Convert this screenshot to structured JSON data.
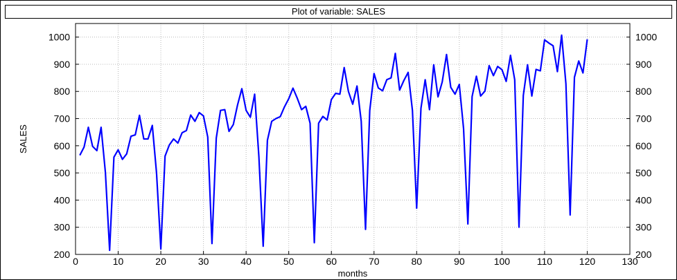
{
  "chart_data": {
    "type": "line",
    "title": "Plot of variable: SALES",
    "xlabel": "months",
    "ylabel": "SALES",
    "xlim": [
      0,
      130
    ],
    "ylim": [
      200,
      1050
    ],
    "x_ticks": [
      0,
      10,
      20,
      30,
      40,
      50,
      60,
      70,
      80,
      90,
      100,
      110,
      120,
      130
    ],
    "y_ticks": [
      200,
      300,
      400,
      500,
      600,
      700,
      800,
      900,
      1000
    ],
    "grid": true,
    "grid_style": "dotted",
    "right_axis_ticks": true,
    "series": [
      {
        "color": "#0000ff",
        "x": [
          1,
          2,
          3,
          4,
          5,
          6,
          7,
          8,
          9,
          10,
          11,
          12,
          13,
          14,
          15,
          16,
          17,
          18,
          19,
          20,
          21,
          22,
          23,
          24,
          25,
          26,
          27,
          28,
          29,
          30,
          31,
          32,
          33,
          34,
          35,
          36,
          37,
          38,
          39,
          40,
          41,
          42,
          43,
          44,
          45,
          46,
          47,
          48,
          49,
          50,
          51,
          52,
          53,
          54,
          55,
          56,
          57,
          58,
          59,
          60,
          61,
          62,
          63,
          64,
          65,
          66,
          67,
          68,
          69,
          70,
          71,
          72,
          73,
          74,
          75,
          76,
          77,
          78,
          79,
          80,
          81,
          82,
          83,
          84,
          85,
          86,
          87,
          88,
          89,
          90,
          91,
          92,
          93,
          94,
          95,
          96,
          97,
          98,
          99,
          100,
          101,
          102,
          103,
          104,
          105,
          106,
          107,
          108,
          109,
          110,
          111,
          112,
          113,
          114,
          115,
          116,
          117,
          118,
          119,
          120
        ],
        "values": [
          565,
          595,
          668,
          598,
          582,
          668,
          502,
          215,
          558,
          585,
          550,
          570,
          635,
          640,
          712,
          625,
          625,
          675,
          500,
          220,
          562,
          603,
          625,
          610,
          648,
          656,
          713,
          690,
          722,
          710,
          632,
          240,
          628,
          730,
          733,
          653,
          678,
          750,
          810,
          730,
          705,
          790,
          560,
          230,
          620,
          690,
          700,
          707,
          743,
          773,
          812,
          775,
          733,
          745,
          683,
          243,
          683,
          708,
          695,
          770,
          793,
          790,
          888,
          800,
          753,
          820,
          690,
          292,
          730,
          866,
          813,
          802,
          843,
          850,
          940,
          805,
          840,
          870,
          730,
          370,
          738,
          843,
          733,
          898,
          780,
          835,
          936,
          815,
          790,
          826,
          663,
          312,
          781,
          856,
          783,
          801,
          895,
          858,
          892,
          880,
          837,
          933,
          843,
          300,
          785,
          898,
          783,
          881,
          876,
          990,
          978,
          968,
          873,
          1007,
          828,
          345,
          852,
          912,
          868,
          992
        ]
      }
    ]
  }
}
